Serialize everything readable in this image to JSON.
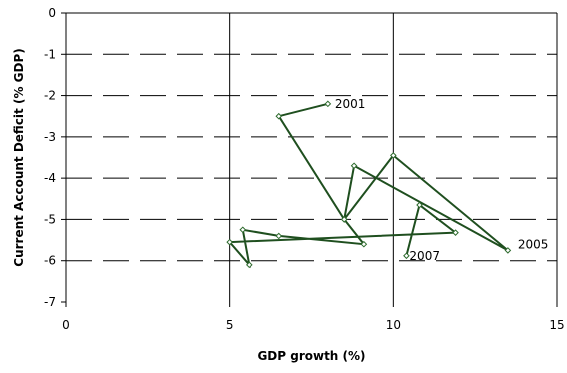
{
  "chart_data": {
    "type": "line",
    "xlabel": "GDP growth (%)",
    "ylabel": "Current Account Deficit (% GDP)",
    "xlim": [
      0,
      15
    ],
    "ylim": [
      -7,
      0
    ],
    "xticks": [
      0,
      5,
      10,
      15
    ],
    "yticks": [
      0,
      -1,
      -2,
      -3,
      -4,
      -5,
      -6,
      -7
    ],
    "grid": {
      "horizontal": "dashed",
      "vertical": "solid"
    },
    "line_color": "#1f4f1f",
    "marker_color": "#2e6b2e",
    "series": [
      {
        "x": [
          8.0,
          6.5,
          8.5,
          8.8,
          13.5,
          10.0,
          8.5,
          9.1,
          6.5,
          5.4,
          5.6,
          5.0,
          11.9,
          10.8,
          10.4
        ],
        "y": [
          -2.2,
          -2.5,
          -5.0,
          -3.7,
          -5.75,
          -3.45,
          -5.0,
          -5.6,
          -5.4,
          -5.25,
          -6.1,
          -5.55,
          -5.32,
          -4.65,
          -5.88
        ]
      }
    ],
    "annotations": [
      {
        "text": "2001",
        "x": 8.0,
        "y": -2.2,
        "dx": 7,
        "dy": 4
      },
      {
        "text": "2005",
        "x": 13.5,
        "y": -5.75,
        "dx": 10,
        "dy": -2
      },
      {
        "text": "2007",
        "x": 10.4,
        "y": -5.88,
        "dx": 3,
        "dy": 4
      }
    ]
  }
}
